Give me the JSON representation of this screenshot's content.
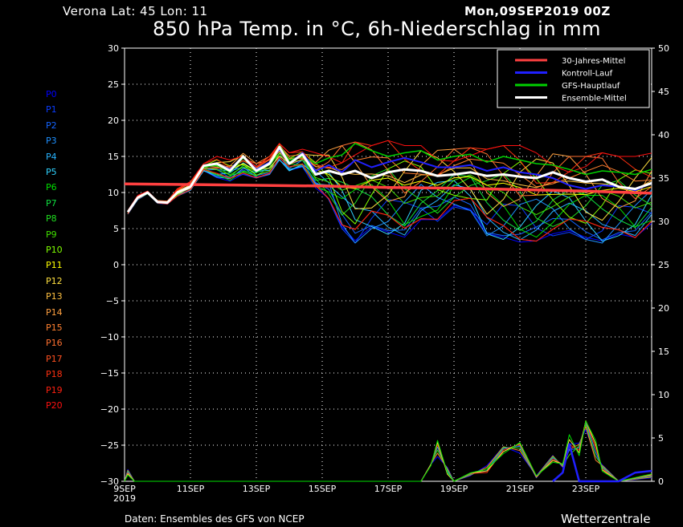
{
  "header": {
    "location": "Verona   Lat: 45 Lon: 11",
    "run": "Mon,09SEP2019 00Z",
    "title": "850 hPa Temp. in °C, 6h-Niederschlag in mm"
  },
  "footer": {
    "source": "Daten: Ensembles des GFS von NCEP",
    "brand": "Wetterzentrale"
  },
  "members": [
    "P0",
    "P1",
    "P2",
    "P3",
    "P4",
    "P5",
    "P6",
    "P7",
    "P8",
    "P9",
    "P10",
    "P11",
    "P12",
    "P13",
    "P14",
    "P15",
    "P16",
    "P17",
    "P18",
    "P19",
    "P20"
  ],
  "member_colors": [
    "#0000ff",
    "#0a3cff",
    "#1464ff",
    "#1e90ff",
    "#28b4ff",
    "#30d2ff",
    "#00e000",
    "#10e040",
    "#20e020",
    "#40e000",
    "#80ff00",
    "#ffff00",
    "#ffe040",
    "#ffc040",
    "#ffa040",
    "#ff8030",
    "#ff7030",
    "#ff5020",
    "#ff3010",
    "#ff2010",
    "#ff1010"
  ],
  "chart_data": {
    "type": "line",
    "x_ticks": [
      "9SEP",
      "11SEP",
      "13SEP",
      "15SEP",
      "17SEP",
      "19SEP",
      "21SEP",
      "23SEP"
    ],
    "x_tick_year": "2019",
    "x_range_days": [
      9,
      25
    ],
    "ylim_left": [
      -30,
      30
    ],
    "yticks_left": [
      30,
      25,
      20,
      15,
      10,
      5,
      0,
      -5,
      -10,
      -15,
      -20,
      -25,
      -30
    ],
    "ylim_right": [
      0,
      50
    ],
    "yticks_right": [
      50,
      45,
      40,
      35,
      30,
      25,
      20,
      15,
      10,
      5,
      0
    ],
    "grid": true,
    "legend_position": "top-right",
    "legend": [
      {
        "name": "30-Jahres-Mittel",
        "color": "#ff4040"
      },
      {
        "name": "Kontroll-Lauf",
        "color": "#2020ff"
      },
      {
        "name": "GFS-Hauptlauf",
        "color": "#00d000"
      },
      {
        "name": "Ensemble-Mittel",
        "color": "#ffffff"
      }
    ],
    "climate_mean": {
      "x": [
        9,
        13,
        15,
        17,
        19,
        21,
        23,
        25
      ],
      "y": [
        11.2,
        11.0,
        10.9,
        10.7,
        10.6,
        10.4,
        10.2,
        9.9
      ]
    },
    "ensemble_mean": {
      "x": [
        9.1,
        9.4,
        9.7,
        10.0,
        10.3,
        10.6,
        11.0,
        11.4,
        11.8,
        12.2,
        12.6,
        13.0,
        13.4,
        13.7,
        14.0,
        14.4,
        14.8,
        15.2,
        15.6,
        16.0,
        16.5,
        17.0,
        17.5,
        18.0,
        18.5,
        19.0,
        19.5,
        20.0,
        20.5,
        21.0,
        21.5,
        22.0,
        22.5,
        23.0,
        23.5,
        24.0,
        24.5,
        25.0
      ],
      "y": [
        7.3,
        9.3,
        10.0,
        8.7,
        8.6,
        10.0,
        10.8,
        13.7,
        14.0,
        13.0,
        15.0,
        13.0,
        14.0,
        16.3,
        14.0,
        15.3,
        12.5,
        13.0,
        12.5,
        13.0,
        12.0,
        12.8,
        13.2,
        13.0,
        12.3,
        12.5,
        12.8,
        12.3,
        12.5,
        12.2,
        12.0,
        12.8,
        12.0,
        11.5,
        11.8,
        10.8,
        10.5,
        11.3
      ]
    },
    "control_run": {
      "x": [
        9.1,
        9.4,
        9.7,
        10.0,
        10.3,
        10.6,
        11.0,
        11.4,
        11.8,
        12.2,
        12.6,
        13.0,
        13.4,
        13.7,
        14.0,
        14.4,
        14.8,
        15.2,
        15.6,
        16.0,
        16.5,
        17.0,
        17.5,
        18.0,
        18.5,
        19.0,
        19.5,
        20.0,
        20.5,
        21.0,
        21.5,
        22.0,
        22.5,
        23.0,
        23.5,
        24.0,
        24.5,
        25.0
      ],
      "y": [
        7.3,
        9.3,
        10.0,
        8.7,
        8.6,
        10.0,
        10.8,
        13.7,
        14.0,
        13.2,
        15.0,
        13.2,
        14.2,
        16.0,
        14.0,
        15.5,
        13.0,
        13.8,
        12.8,
        14.5,
        13.5,
        14.2,
        14.8,
        14.2,
        13.5,
        13.5,
        13.8,
        13.0,
        13.5,
        12.8,
        12.5,
        12.0,
        11.0,
        10.5,
        11.0,
        10.8,
        10.3,
        11.3
      ]
    },
    "main_run": {
      "x": [
        9.1,
        9.4,
        9.7,
        10.0,
        10.3,
        10.6,
        11.0,
        11.4,
        11.8,
        12.2,
        12.6,
        13.0,
        13.4,
        13.7,
        14.0,
        14.4,
        14.8,
        15.2,
        15.6,
        16.0,
        16.5,
        17.0,
        17.5,
        18.0,
        18.5,
        19.0,
        19.5,
        20.0,
        20.5,
        21.0,
        21.5,
        22.0,
        22.5,
        23.0,
        23.5,
        24.0,
        24.5,
        25.0
      ],
      "y": [
        7.3,
        9.3,
        10.0,
        8.7,
        8.6,
        10.0,
        10.8,
        13.5,
        13.8,
        12.8,
        14.8,
        13.0,
        14.0,
        16.5,
        14.5,
        15.0,
        14.0,
        14.8,
        15.2,
        16.8,
        15.8,
        15.0,
        15.5,
        15.8,
        14.5,
        15.0,
        15.3,
        14.2,
        15.0,
        14.5,
        14.0,
        13.8,
        13.2,
        12.5,
        13.0,
        12.8,
        12.5,
        13.2
      ]
    },
    "member_spread": {
      "x": [
        9.1,
        9.4,
        9.7,
        10.0,
        10.3,
        10.6,
        11.0,
        11.4,
        11.8,
        12.2,
        12.6,
        13.0,
        13.4,
        13.7,
        14.0,
        14.4,
        14.8,
        15.2,
        15.6,
        16.0,
        16.5,
        17.0,
        17.5,
        18.0,
        18.5,
        19.0,
        19.5,
        20.0,
        20.5,
        21.0,
        21.5,
        22.0,
        22.5,
        23.0,
        23.5,
        24.0,
        24.5,
        25.0
      ],
      "min": [
        7.0,
        9.0,
        9.8,
        8.5,
        8.4,
        9.5,
        10.3,
        13.0,
        12.0,
        11.5,
        12.5,
        12.0,
        12.5,
        14.5,
        13.0,
        13.5,
        10.5,
        9.0,
        5.0,
        3.0,
        5.0,
        4.2,
        3.5,
        6.0,
        6.0,
        8.0,
        7.5,
        4.0,
        3.5,
        2.8,
        3.0,
        4.0,
        4.5,
        3.5,
        3.0,
        4.0,
        3.5,
        5.5
      ],
      "max": [
        7.5,
        9.6,
        10.2,
        8.9,
        8.8,
        10.5,
        11.5,
        14.0,
        15.0,
        14.5,
        15.5,
        14.0,
        15.0,
        16.8,
        15.5,
        16.0,
        15.5,
        16.0,
        16.5,
        17.0,
        16.5,
        17.2,
        16.5,
        16.5,
        16.0,
        16.0,
        16.2,
        16.0,
        16.5,
        16.5,
        15.5,
        15.5,
        15.0,
        15.0,
        15.5,
        15.0,
        15.0,
        15.5
      ]
    },
    "precip_members_mm": {
      "x": [
        9.0,
        9.1,
        9.3,
        9.5,
        18.0,
        18.3,
        18.5,
        18.8,
        19.0,
        19.5,
        20.0,
        20.5,
        21.0,
        21.5,
        22.0,
        22.3,
        22.5,
        22.8,
        23.0,
        23.3,
        23.5,
        24.0,
        25.0
      ],
      "member_peak": [
        0,
        1.5,
        0,
        0,
        0,
        2.0,
        5.0,
        2.0,
        0,
        1.0,
        2.5,
        4.0,
        4.5,
        1.0,
        3.0,
        2.0,
        7.5,
        4.5,
        7.0,
        6.0,
        2.0,
        0,
        1.0
      ]
    },
    "precip_control_mm": {
      "x": [
        22.0,
        22.3,
        22.5,
        22.8,
        23.0,
        24.0,
        24.5,
        25.0
      ],
      "y": [
        0,
        1.0,
        4.3,
        0,
        0,
        0,
        1.0,
        1.2
      ]
    }
  }
}
